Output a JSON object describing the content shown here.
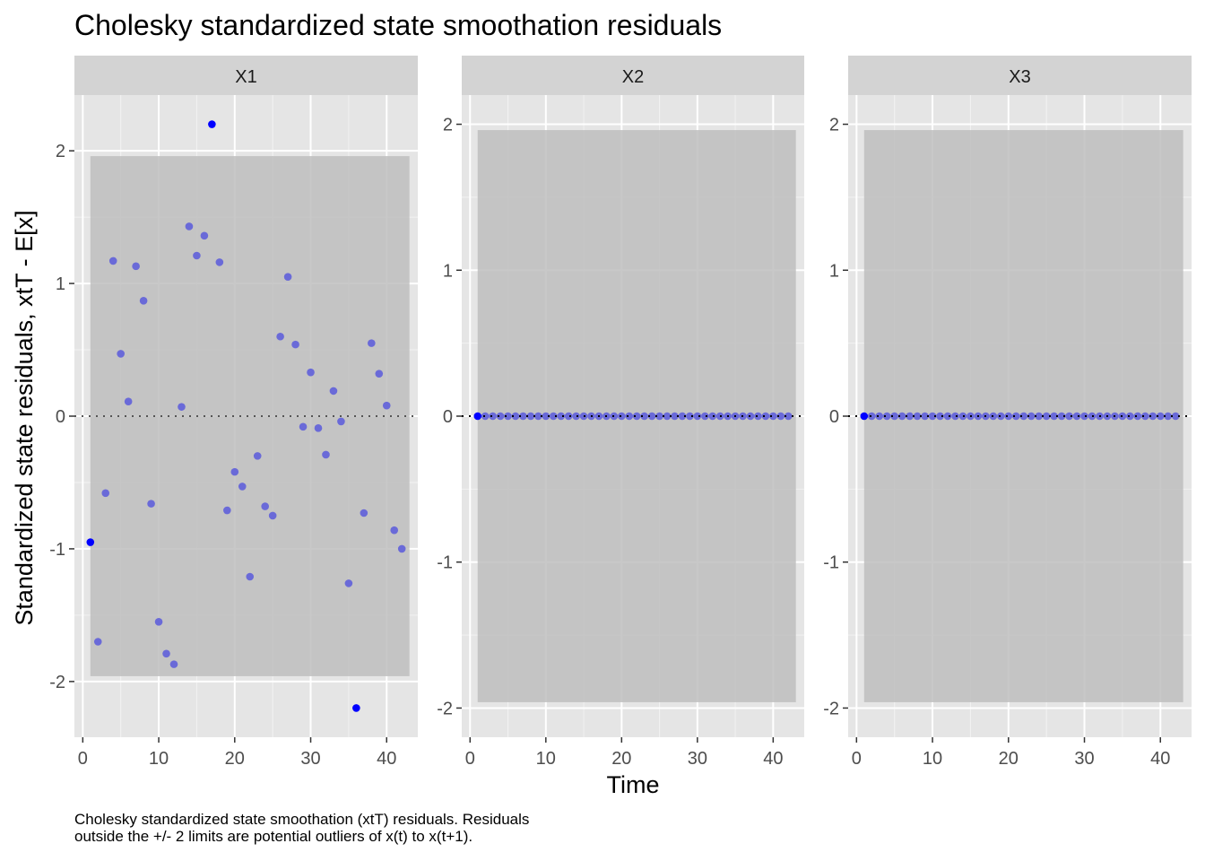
{
  "title": "Cholesky standardized state smoothation residuals",
  "caption": {
    "line1": "Cholesky standardized state smoothation (xtT) residuals. Residuals",
    "line2": "outside the +/- 2 limits are potential outliers of x(t) to x(t+1)."
  },
  "chart_data": {
    "type": "scatter",
    "xlabel": "Time",
    "ylabel": "Standardized state residuals, xtT - E[x]",
    "x_ticks": [
      0,
      10,
      20,
      30,
      40
    ],
    "band": [
      -1.96,
      1.96
    ],
    "reference_line": 0,
    "colors": {
      "point": "#6a6ad8",
      "outlier": "#0000ff",
      "band": "#bebebe",
      "panel_bg": "#e5e5e5",
      "strip_bg": "#d3d3d3"
    },
    "panels": [
      {
        "name": "X1",
        "y_ticks": [
          -2,
          -1,
          0,
          1,
          2
        ],
        "ylim": [
          -2.42,
          2.42
        ],
        "x": [
          1,
          2,
          3,
          4,
          5,
          6,
          7,
          8,
          9,
          10,
          11,
          12,
          13,
          14,
          15,
          16,
          17,
          18,
          19,
          20,
          21,
          22,
          23,
          24,
          25,
          26,
          27,
          28,
          29,
          30,
          31,
          32,
          33,
          34,
          35,
          36,
          37,
          38,
          39,
          40,
          41,
          42
        ],
        "y": [
          -0.95,
          -1.7,
          -0.58,
          1.17,
          0.47,
          0.11,
          1.13,
          0.87,
          -0.66,
          -1.55,
          -1.79,
          -1.87,
          0.07,
          1.43,
          1.21,
          1.36,
          2.2,
          1.16,
          -0.71,
          -0.42,
          -0.53,
          -1.21,
          -0.3,
          -0.68,
          -0.75,
          0.6,
          1.05,
          0.54,
          -0.08,
          0.33,
          -0.09,
          -0.29,
          0.19,
          -0.04,
          -1.26,
          -2.2,
          -0.73,
          0.55,
          0.32,
          0.08,
          -0.86,
          -1.0
        ]
      },
      {
        "name": "X2",
        "y_ticks": [
          -2,
          -1,
          0,
          1,
          2
        ],
        "ylim": [
          -2.2,
          2.2
        ],
        "x": [
          1,
          2,
          3,
          4,
          5,
          6,
          7,
          8,
          9,
          10,
          11,
          12,
          13,
          14,
          15,
          16,
          17,
          18,
          19,
          20,
          21,
          22,
          23,
          24,
          25,
          26,
          27,
          28,
          29,
          30,
          31,
          32,
          33,
          34,
          35,
          36,
          37,
          38,
          39,
          40,
          41,
          42
        ],
        "y": [
          0,
          0,
          0,
          0,
          0,
          0,
          0,
          0,
          0,
          0,
          0,
          0,
          0,
          0,
          0,
          0,
          0,
          0,
          0,
          0,
          0,
          0,
          0,
          0,
          0,
          0,
          0,
          0,
          0,
          0,
          0,
          0,
          0,
          0,
          0,
          0,
          0,
          0,
          0,
          0,
          0,
          0
        ]
      },
      {
        "name": "X3",
        "y_ticks": [
          -2,
          -1,
          0,
          1,
          2
        ],
        "ylim": [
          -2.2,
          2.2
        ],
        "x": [
          1,
          2,
          3,
          4,
          5,
          6,
          7,
          8,
          9,
          10,
          11,
          12,
          13,
          14,
          15,
          16,
          17,
          18,
          19,
          20,
          21,
          22,
          23,
          24,
          25,
          26,
          27,
          28,
          29,
          30,
          31,
          32,
          33,
          34,
          35,
          36,
          37,
          38,
          39,
          40,
          41,
          42
        ],
        "y": [
          0,
          0,
          0,
          0,
          0,
          0,
          0,
          0,
          0,
          0,
          0,
          0,
          0,
          0,
          0,
          0,
          0,
          0,
          0,
          0,
          0,
          0,
          0,
          0,
          0,
          0,
          0,
          0,
          0,
          0,
          0,
          0,
          0,
          0,
          0,
          0,
          0,
          0,
          0,
          0,
          0,
          0
        ]
      }
    ]
  }
}
